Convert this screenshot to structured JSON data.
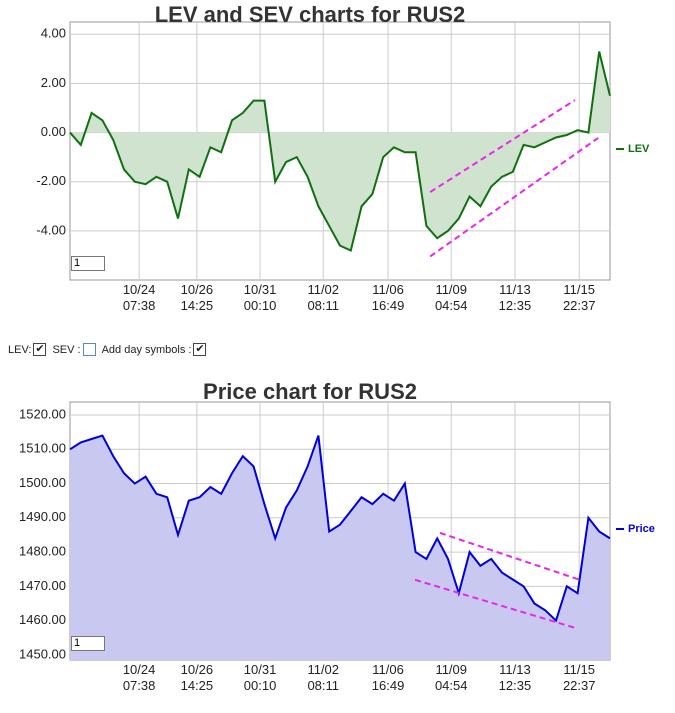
{
  "chart_data": [
    {
      "type": "line",
      "title": "LEV and SEV charts for RUS2",
      "range_input": "1",
      "x": [
        0,
        2,
        4,
        6,
        8,
        10,
        12,
        14,
        16,
        18,
        20,
        22,
        24,
        26,
        28,
        30,
        32,
        34,
        36,
        38,
        40,
        42,
        44,
        46,
        48,
        50,
        52,
        54,
        56,
        58,
        60,
        62,
        64,
        66,
        68,
        70,
        72,
        74,
        76,
        78,
        80,
        82,
        84,
        86,
        88,
        90,
        92,
        94,
        96,
        98,
        100
      ],
      "series": [
        {
          "name": "LEV",
          "color": "#107010",
          "fill": "#cfe3cf",
          "values": [
            0,
            -0.5,
            0.8,
            0.5,
            -0.3,
            -1.5,
            -2.0,
            -2.1,
            -1.8,
            -2.0,
            -3.5,
            -1.5,
            -1.8,
            -0.6,
            -0.8,
            0.5,
            0.8,
            1.3,
            1.3,
            -2.0,
            -1.2,
            -1.0,
            -1.8,
            -3.0,
            -3.8,
            -4.6,
            -4.8,
            -3.0,
            -2.5,
            -1.0,
            -0.6,
            -0.8,
            -0.8,
            -3.8,
            -4.3,
            -4.0,
            -3.5,
            -2.6,
            -3.0,
            -2.2,
            -1.8,
            -1.6,
            -0.5,
            -0.6,
            -0.4,
            -0.2,
            -0.1,
            0.1,
            0,
            3.3,
            1.5
          ]
        }
      ],
      "trendlines": [
        {
          "x": [
            66.7,
            93.5
          ],
          "y": [
            -2.42,
            1.32
          ]
        },
        {
          "x": [
            66.7,
            97.8
          ],
          "y": [
            -5.04,
            -0.22
          ]
        }
      ],
      "trend_color": "#ee22ee",
      "xlim": [
        0,
        100
      ],
      "xticks": [
        {
          "value": 12.8,
          "label": "10/24\n07:38"
        },
        {
          "value": 23.5,
          "label": "10/26\n14:25"
        },
        {
          "value": 35.2,
          "label": "10/31\n00:10"
        },
        {
          "value": 46.9,
          "label": "11/02\n08:11"
        },
        {
          "value": 58.9,
          "label": "11/06\n16:49"
        },
        {
          "value": 70.6,
          "label": "11/09\n04:54"
        },
        {
          "value": 82.4,
          "label": "11/13\n12:35"
        },
        {
          "value": 94.3,
          "label": "11/15\n22:37"
        }
      ],
      "ylim": [
        -6,
        4.5
      ],
      "yticks": [
        {
          "value": 4,
          "label": "4.00"
        },
        {
          "value": 2,
          "label": "2.00"
        },
        {
          "value": 0,
          "label": "0.00"
        },
        {
          "value": -2,
          "label": "-2.00"
        },
        {
          "value": -4,
          "label": "-4.00"
        }
      ],
      "grid": true
    },
    {
      "type": "line",
      "title": "Price chart for RUS2",
      "range_input": "1",
      "x": [
        0,
        2,
        4,
        6,
        8,
        10,
        12,
        14,
        16,
        18,
        20,
        22,
        24,
        26,
        28,
        30,
        32,
        34,
        36,
        38,
        40,
        42,
        44,
        46,
        48,
        50,
        52,
        54,
        56,
        58,
        60,
        62,
        64,
        66,
        68,
        70,
        72,
        74,
        76,
        78,
        80,
        82,
        84,
        86,
        88,
        90,
        92,
        94,
        96,
        98,
        100
      ],
      "series": [
        {
          "name": "Price",
          "color": "#0000dd",
          "fill": "#c8c8f0",
          "values": [
            1510,
            1512,
            1513,
            1514,
            1508,
            1503,
            1500,
            1502,
            1497,
            1496,
            1485,
            1495,
            1496,
            1499,
            1497,
            1503,
            1508,
            1505,
            1494,
            1484,
            1493,
            1498,
            1505,
            1514,
            1486,
            1488,
            1492,
            1496,
            1494,
            1497,
            1495,
            1500,
            1480,
            1478,
            1484,
            1478,
            1468,
            1480,
            1476,
            1478,
            1474,
            1472,
            1470,
            1465,
            1463,
            1460,
            1470,
            1468,
            1490,
            1486,
            1484
          ]
        }
      ],
      "trendlines": [
        {
          "x": [
            68.5,
            94.4
          ],
          "y": [
            1485.6,
            1471.9
          ]
        },
        {
          "x": [
            63.9,
            93.5
          ],
          "y": [
            1471.9,
            1457.9
          ]
        }
      ],
      "trend_color": "#ee22ee",
      "xlim": [
        0,
        100
      ],
      "xticks": [
        {
          "value": 12.8,
          "label": "10/24\n07:38"
        },
        {
          "value": 23.5,
          "label": "10/26\n14:25"
        },
        {
          "value": 35.2,
          "label": "10/31\n00:10"
        },
        {
          "value": 46.9,
          "label": "11/02\n08:11"
        },
        {
          "value": 58.9,
          "label": "11/06\n16:49"
        },
        {
          "value": 70.6,
          "label": "11/09\n04:54"
        },
        {
          "value": 82.4,
          "label": "11/13\n12:35"
        },
        {
          "value": 94.3,
          "label": "11/15\n22:37"
        }
      ],
      "ylim": [
        1448.5,
        1523.8
      ],
      "yticks": [
        {
          "value": 1450,
          "label": "1450.00"
        },
        {
          "value": 1460,
          "label": "1460.00"
        },
        {
          "value": 1470,
          "label": "1470.00"
        },
        {
          "value": 1480,
          "label": "1480.00"
        },
        {
          "value": 1490,
          "label": "1490.00"
        },
        {
          "value": 1500,
          "label": "1500.00"
        },
        {
          "value": 1510,
          "label": "1510.00"
        },
        {
          "value": 1520,
          "label": "1520.00"
        }
      ],
      "grid": true
    }
  ],
  "controls": [
    {
      "label": "LEV:",
      "checked": true
    },
    {
      "label": "SEV :",
      "checked": false
    },
    {
      "label": "Add day symbols :",
      "checked": true
    }
  ]
}
